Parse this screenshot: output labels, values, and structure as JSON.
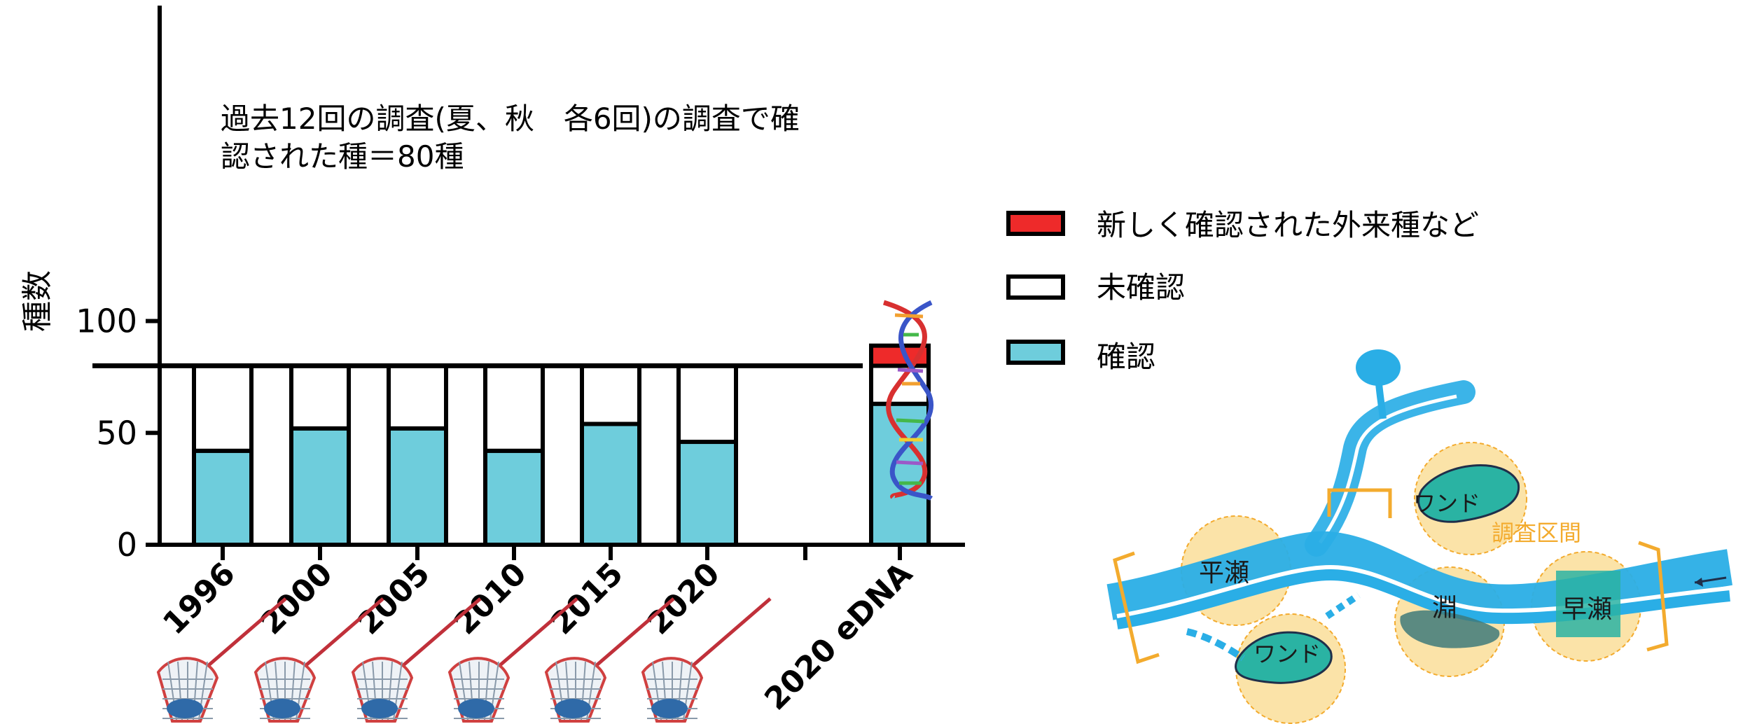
{
  "chart_data": {
    "type": "bar",
    "stacked": true,
    "ylabel": "種数",
    "ylim": [
      0,
      120
    ],
    "yticks": [
      0,
      50,
      100
    ],
    "categories": [
      "1996",
      "2000",
      "2005",
      "2010",
      "2015",
      "2020",
      "",
      "2020 eDNA"
    ],
    "series": [
      {
        "name": "確認",
        "color": "#6ecddc",
        "values": [
          42,
          52,
          52,
          42,
          54,
          46,
          null,
          63
        ]
      },
      {
        "name": "未確認",
        "color": "#ffffff",
        "values": [
          38,
          28,
          28,
          38,
          26,
          34,
          null,
          17
        ]
      },
      {
        "name": "新しく確認された外来種など",
        "color": "#ee2a2a",
        "values": [
          0,
          0,
          0,
          0,
          0,
          0,
          null,
          9
        ]
      }
    ],
    "reference_line": {
      "value": 80
    },
    "annotation": [
      "過去12回の調査(夏、秋　各6回)の調査で確",
      "認された種＝80種"
    ],
    "legend": {
      "placement": "right",
      "items": [
        "新しく確認された外来種など",
        "未確認",
        "確認"
      ]
    }
  },
  "river_map": {
    "labels": {
      "wando_top": "ワンド",
      "survey_section": "調査区間",
      "hirase": "平瀬",
      "fuchi": "淵",
      "hayase": "早瀬",
      "wando_bottom": "ワンド"
    },
    "colors": {
      "river": "#2aaee6",
      "zone": "#fbe3a8",
      "section": "#f3ab2e",
      "pool": "#2ab3a3"
    }
  }
}
